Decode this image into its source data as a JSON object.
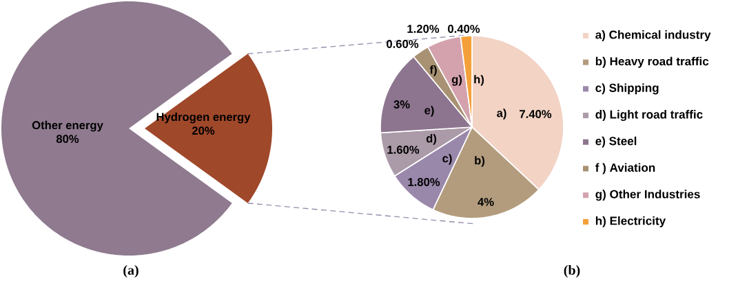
{
  "chart_data": [
    {
      "type": "pie",
      "categories": [
        "Other energy",
        "Hydrogen energy"
      ],
      "values": [
        80,
        20
      ],
      "value_labels": [
        "80%",
        "20%"
      ],
      "colors": [
        "#8f7a8f",
        "#a0482a"
      ],
      "annotations": [
        "(a)"
      ]
    },
    {
      "type": "pie",
      "categories": [
        "a) Chemical industry",
        "b) Heavy road traffic",
        "c) Shipping",
        "d) Light road traffic",
        "e) Steel",
        "f ) Aviation",
        "g) Other Industries",
        "h) Electricity"
      ],
      "values": [
        7.4,
        4,
        1.8,
        1.6,
        3,
        0.6,
        1.2,
        0.4
      ],
      "value_labels": [
        "7.40%",
        "4%",
        "1.80%",
        "1.60%",
        "3%",
        "0.60%",
        "1.20%",
        "0.40%"
      ],
      "colors": [
        "#f2d3c4",
        "#b39c7d",
        "#9a88ab",
        "#ab9aa8",
        "#8d7590",
        "#a89273",
        "#d3a2ad",
        "#f4a03a"
      ],
      "legend": "right",
      "annotations": [
        {
          "text": "a)",
          "x": "a) Chemical industry"
        },
        {
          "text": "b)",
          "x": "b) Heavy road traffic"
        },
        {
          "text": "c)",
          "x": "c) Shipping"
        },
        {
          "text": "d)",
          "x": "d) Light road traffic"
        },
        {
          "text": "e)",
          "x": "e) Steel"
        },
        {
          "text": "f)",
          "x": "f ) Aviation"
        },
        {
          "text": "g)",
          "x": "g) Other Industries"
        },
        {
          "text": "h)",
          "x": "h) Electricity"
        },
        "(b)"
      ]
    }
  ]
}
